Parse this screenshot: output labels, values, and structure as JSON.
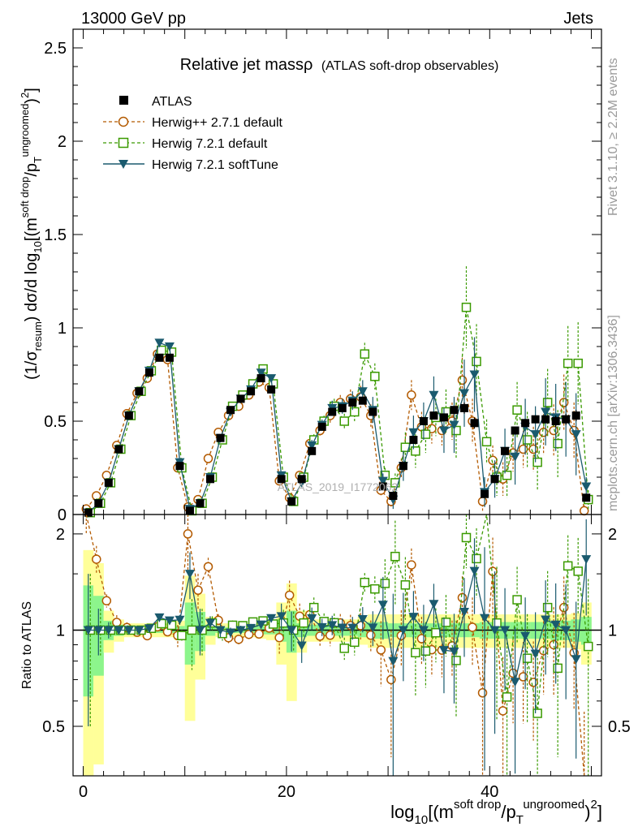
{
  "header": {
    "beam": "13000 GeV pp",
    "category": "Jets"
  },
  "side_labels": {
    "rivet": "Rivet 3.1.10, ≥ 2.2M events",
    "mcplots": "mcplots.cern.ch [arXiv:1306.3436]"
  },
  "chart_data": [
    {
      "type": "line",
      "title": "Relative jet massρ",
      "subtitle": "(ATLAS soft-drop observables)",
      "watermark": "ATLAS_2019_I1772062",
      "xlim": [
        -1,
        51
      ],
      "ylim": [
        0,
        2.6
      ],
      "y_ticks": [
        "0",
        "0.5",
        "1",
        "1.5",
        "2",
        "2.5"
      ],
      "ylabel": {
        "pre": "(1/σ",
        "sub1": "resum",
        "mid": ") dσ/d log",
        "sub2": "10",
        "br": "[(m",
        "sup1": "soft drop",
        "slash": "/p",
        "subT": "T",
        "sup2": "ungroomed",
        "end": ")",
        "sq": "2",
        "close": "]"
      },
      "legend": [
        {
          "key": "atlas",
          "label": "ATLAS",
          "color": "#000000",
          "marker": "filled-square"
        },
        {
          "key": "h2",
          "label": "Herwig++ 2.7.1 default",
          "color": "#b35a00",
          "marker": "open-circle"
        },
        {
          "key": "h7",
          "label": "Herwig 7.2.1 default",
          "color": "#3a9a00",
          "marker": "open-square"
        },
        {
          "key": "h7s",
          "label": "Herwig 7.2.1 softTune",
          "color": "#1a5a6e",
          "marker": "filled-triangle-down"
        }
      ],
      "x": [
        0.5,
        1.5,
        2.5,
        3.5,
        4.5,
        5.5,
        6.5,
        7.5,
        8.5,
        9.5,
        10.5,
        11.5,
        12.5,
        13.5,
        14.5,
        15.5,
        16.5,
        17.5,
        18.5,
        19.5,
        20.5,
        21.5,
        22.5,
        23.5,
        24.5,
        25.5,
        26.5,
        27.5,
        28.5,
        29.5,
        30.5,
        31.5,
        32.5,
        33.5,
        34.5,
        35.5,
        36.5,
        37.5,
        38.5,
        39.5,
        40.5,
        41.5,
        42.5,
        43.5,
        44.5,
        45.5,
        46.5,
        47.5,
        48.5,
        49.5
      ],
      "series": [
        {
          "key": "atlas",
          "name": "ATLAS",
          "values": [
            0.01,
            0.06,
            0.17,
            0.35,
            0.53,
            0.66,
            0.76,
            0.84,
            0.84,
            0.26,
            0.02,
            0.06,
            0.19,
            0.41,
            0.56,
            0.62,
            0.66,
            0.73,
            0.67,
            0.19,
            0.07,
            0.19,
            0.34,
            0.47,
            0.55,
            0.57,
            0.6,
            0.61,
            0.55,
            0.15,
            0.1,
            0.26,
            0.4,
            0.5,
            0.53,
            0.52,
            0.56,
            0.57,
            0.49,
            0.11,
            0.19,
            0.34,
            0.45,
            0.49,
            0.51,
            0.51,
            0.5,
            0.51,
            0.53,
            0.09
          ],
          "errors": [
            0.005,
            0.01,
            0.01,
            0.01,
            0.01,
            0.01,
            0.01,
            0.01,
            0.01,
            0.01,
            0.005,
            0.01,
            0.01,
            0.01,
            0.01,
            0.01,
            0.01,
            0.01,
            0.01,
            0.01,
            0.01,
            0.01,
            0.01,
            0.01,
            0.01,
            0.01,
            0.02,
            0.02,
            0.02,
            0.01,
            0.01,
            0.02,
            0.02,
            0.02,
            0.02,
            0.02,
            0.02,
            0.03,
            0.03,
            0.01,
            0.02,
            0.02,
            0.02,
            0.02,
            0.02,
            0.02,
            0.03,
            0.03,
            0.03,
            0.02
          ]
        },
        {
          "key": "h2",
          "name": "Herwig++ 2.7.1 default",
          "values": [
            0.03,
            0.1,
            0.21,
            0.37,
            0.54,
            0.65,
            0.73,
            0.86,
            0.83,
            0.25,
            0.04,
            0.08,
            0.3,
            0.44,
            0.53,
            0.58,
            0.64,
            0.71,
            0.68,
            0.18,
            0.09,
            0.21,
            0.38,
            0.45,
            0.53,
            0.6,
            0.62,
            0.63,
            0.53,
            0.13,
            0.07,
            0.25,
            0.64,
            0.47,
            0.46,
            0.45,
            0.5,
            0.72,
            0.5,
            0.07,
            0.29,
            0.19,
            0.33,
            0.35,
            0.35,
            0.44,
            0.45,
            0.6,
            0.45,
            0.02
          ],
          "errors": [
            0.01,
            0.01,
            0.01,
            0.02,
            0.02,
            0.02,
            0.02,
            0.02,
            0.02,
            0.02,
            0.01,
            0.01,
            0.02,
            0.02,
            0.02,
            0.02,
            0.02,
            0.02,
            0.02,
            0.02,
            0.01,
            0.02,
            0.03,
            0.03,
            0.04,
            0.04,
            0.05,
            0.06,
            0.06,
            0.03,
            0.03,
            0.05,
            0.08,
            0.08,
            0.08,
            0.08,
            0.1,
            0.12,
            0.12,
            0.05,
            0.08,
            0.09,
            0.1,
            0.1,
            0.12,
            0.12,
            0.14,
            0.15,
            0.15,
            0.03
          ]
        },
        {
          "key": "h7",
          "name": "Herwig 7.2.1 default",
          "values": [
            0.01,
            0.06,
            0.17,
            0.35,
            0.53,
            0.66,
            0.77,
            0.88,
            0.87,
            0.25,
            0.02,
            0.06,
            0.2,
            0.4,
            0.58,
            0.64,
            0.7,
            0.78,
            0.7,
            0.2,
            0.07,
            0.2,
            0.4,
            0.5,
            0.58,
            0.5,
            0.55,
            0.86,
            0.74,
            0.21,
            0.17,
            0.36,
            0.34,
            0.43,
            0.52,
            0.55,
            0.45,
            1.11,
            0.82,
            0.39,
            0.2,
            0.21,
            0.56,
            0.4,
            0.28,
            0.6,
            0.38,
            0.81,
            0.81,
            0.08
          ],
          "errors": [
            0.005,
            0.01,
            0.01,
            0.01,
            0.01,
            0.01,
            0.01,
            0.02,
            0.02,
            0.01,
            0.005,
            0.01,
            0.01,
            0.02,
            0.02,
            0.02,
            0.02,
            0.02,
            0.02,
            0.02,
            0.01,
            0.02,
            0.03,
            0.03,
            0.04,
            0.04,
            0.05,
            0.06,
            0.07,
            0.04,
            0.05,
            0.08,
            0.09,
            0.1,
            0.1,
            0.12,
            0.15,
            0.22,
            0.2,
            0.12,
            0.1,
            0.12,
            0.15,
            0.15,
            0.15,
            0.18,
            0.18,
            0.2,
            0.22,
            0.05
          ]
        },
        {
          "key": "h7s",
          "name": "Herwig 7.2.1 softTune",
          "values": [
            0.01,
            0.06,
            0.17,
            0.35,
            0.53,
            0.66,
            0.77,
            0.92,
            0.9,
            0.28,
            0.03,
            0.06,
            0.2,
            0.41,
            0.55,
            0.62,
            0.67,
            0.76,
            0.73,
            0.21,
            0.07,
            0.17,
            0.37,
            0.48,
            0.57,
            0.58,
            0.61,
            0.66,
            0.56,
            0.18,
            0.08,
            0.26,
            0.44,
            0.5,
            0.64,
            0.45,
            0.48,
            0.65,
            0.75,
            0.12,
            0.19,
            0.34,
            0.31,
            0.47,
            0.43,
            0.55,
            0.52,
            0.51,
            0.43,
            0.15
          ],
          "errors": [
            0.005,
            0.01,
            0.01,
            0.01,
            0.01,
            0.01,
            0.01,
            0.02,
            0.02,
            0.01,
            0.005,
            0.01,
            0.01,
            0.02,
            0.02,
            0.02,
            0.02,
            0.02,
            0.02,
            0.02,
            0.01,
            0.02,
            0.03,
            0.03,
            0.04,
            0.04,
            0.05,
            0.06,
            0.07,
            0.04,
            0.05,
            0.08,
            0.09,
            0.1,
            0.1,
            0.12,
            0.15,
            0.18,
            0.2,
            0.08,
            0.1,
            0.12,
            0.15,
            0.15,
            0.15,
            0.18,
            0.18,
            0.2,
            0.22,
            0.05
          ]
        }
      ]
    },
    {
      "type": "line",
      "ylabel": "Ratio to ATLAS",
      "xlim": [
        -1,
        51
      ],
      "ylim": [
        0.35,
        2.3
      ],
      "y_ticks": [
        "0.5",
        "1",
        "2"
      ],
      "x_ticks": [
        "0",
        "20",
        "40"
      ],
      "xlabel": {
        "pre": "log",
        "sub1": "10",
        "br": "[(m",
        "sup1": "soft drop",
        "slash": "/p",
        "subT": "T",
        "sup2": "ungroomed",
        "end": ")",
        "sq": "2",
        "close": "]"
      },
      "band_stat_sys": [
        0.78,
        0.62,
        0.15,
        0.08,
        0.05,
        0.05,
        0.05,
        0.05,
        0.05,
        0.07,
        0.48,
        0.3,
        0.1,
        0.05,
        0.05,
        0.05,
        0.05,
        0.06,
        0.07,
        0.22,
        0.4,
        0.15,
        0.08,
        0.08,
        0.08,
        0.08,
        0.08,
        0.1,
        0.12,
        0.12,
        0.12,
        0.12,
        0.12,
        0.12,
        0.12,
        0.12,
        0.12,
        0.12,
        0.12,
        0.12,
        0.12,
        0.12,
        0.12,
        0.12,
        0.12,
        0.12,
        0.12,
        0.12,
        0.13,
        0.22
      ],
      "band_stat": [
        0.38,
        0.28,
        0.07,
        0.04,
        0.02,
        0.02,
        0.02,
        0.02,
        0.02,
        0.03,
        0.22,
        0.14,
        0.04,
        0.02,
        0.02,
        0.02,
        0.02,
        0.03,
        0.03,
        0.08,
        0.15,
        0.05,
        0.04,
        0.04,
        0.04,
        0.04,
        0.04,
        0.05,
        0.06,
        0.06,
        0.05,
        0.05,
        0.05,
        0.05,
        0.05,
        0.05,
        0.05,
        0.05,
        0.05,
        0.06,
        0.06,
        0.06,
        0.06,
        0.06,
        0.06,
        0.06,
        0.07,
        0.07,
        0.08,
        0.1
      ]
    }
  ]
}
